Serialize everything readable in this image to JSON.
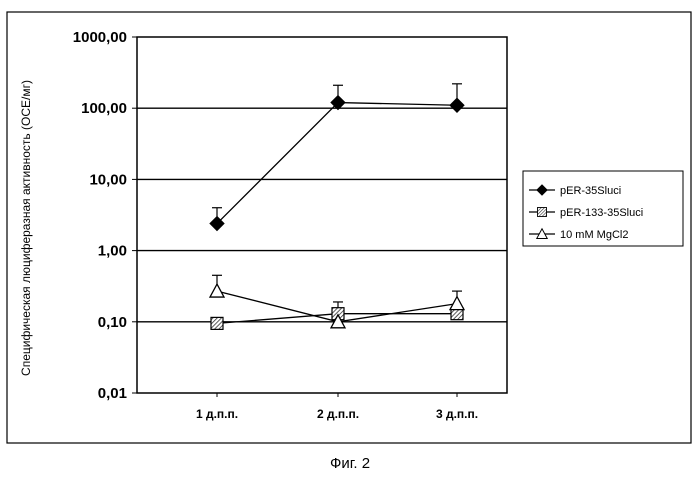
{
  "figure_caption": "Фиг. 2",
  "chart_data": {
    "type": "line",
    "title": "",
    "xlabel": "",
    "ylabel": "Специфическая люциферазная активность (ОСЕ/мг)",
    "yscale": "log",
    "ylim": [
      0.01,
      1000
    ],
    "y_tick_labels": [
      "1000,00",
      "100,00",
      "10,00",
      "1,00",
      "0,10",
      "0,01"
    ],
    "grid": "horizontal major gridlines",
    "legend_position": "right",
    "categories": [
      "1 д.п.п.",
      "2 д.п.п.",
      "3 д.п.п."
    ],
    "series": [
      {
        "name": "pER-35Sluci",
        "marker": "diamond-filled",
        "values": [
          2.4,
          120,
          110
        ],
        "error_upper": [
          4.0,
          210,
          220
        ]
      },
      {
        "name": "pER-133-35Sluci",
        "marker": "square-hatched",
        "values": [
          0.095,
          0.13,
          0.13
        ],
        "error_upper": [
          0.095,
          0.19,
          0.15
        ]
      },
      {
        "name": "10 mM MgCl2",
        "marker": "triangle-open",
        "values": [
          0.27,
          0.1,
          0.18
        ],
        "error_upper": [
          0.45,
          0.1,
          0.27
        ]
      }
    ]
  }
}
